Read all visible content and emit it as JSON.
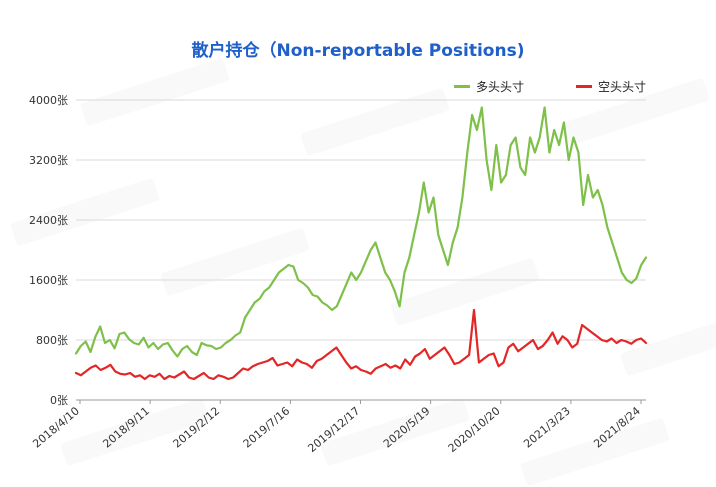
{
  "chart_data": {
    "type": "line",
    "title": "散户持仓（Non-reportable Positions)",
    "xlabel": "",
    "ylabel": "",
    "ylim": [
      0,
      4000
    ],
    "yticks": [
      "0张",
      "800张",
      "1600张",
      "2400张",
      "3200张",
      "4000张"
    ],
    "x_ticks": [
      "2018/4/10",
      "2018/9/11",
      "2019/2/12",
      "2019/7/16",
      "2019/12/17",
      "2020/5/19",
      "2020/10/20",
      "2021/3/23",
      "2021/8/24"
    ],
    "grid": true,
    "legend_position": "top-right",
    "series": [
      {
        "name": "多头头寸",
        "color": "#7ec04a",
        "values": [
          620,
          720,
          780,
          640,
          840,
          980,
          760,
          800,
          690,
          880,
          900,
          810,
          760,
          740,
          830,
          700,
          760,
          680,
          740,
          760,
          660,
          580,
          680,
          720,
          640,
          600,
          760,
          730,
          720,
          680,
          700,
          760,
          800,
          860,
          900,
          1100,
          1200,
          1300,
          1350,
          1450,
          1500,
          1600,
          1700,
          1750,
          1800,
          1780,
          1600,
          1560,
          1500,
          1400,
          1380,
          1300,
          1260,
          1200,
          1250,
          1400,
          1550,
          1700,
          1600,
          1700,
          1850,
          2000,
          2100,
          1900,
          1700,
          1600,
          1450,
          1250,
          1700,
          1900,
          2200,
          2500,
          2900,
          2500,
          2700,
          2200,
          2000,
          1800,
          2100,
          2300,
          2700,
          3300,
          3800,
          3600,
          3900,
          3200,
          2800,
          3400,
          2900,
          3000,
          3400,
          3500,
          3100,
          3000,
          3500,
          3300,
          3500,
          3900,
          3300,
          3600,
          3400,
          3700,
          3200,
          3500,
          3300,
          2600,
          3000,
          2700,
          2800,
          2600,
          2300,
          2100,
          1900,
          1700,
          1600,
          1560,
          1620,
          1800,
          1900
        ],
        "marker": "none"
      },
      {
        "name": "空头头寸",
        "color": "#e32626",
        "values": [
          360,
          330,
          380,
          430,
          460,
          400,
          430,
          470,
          380,
          350,
          340,
          360,
          310,
          330,
          280,
          330,
          310,
          350,
          280,
          320,
          300,
          340,
          380,
          300,
          280,
          320,
          360,
          300,
          280,
          330,
          310,
          280,
          300,
          360,
          420,
          400,
          450,
          480,
          500,
          520,
          560,
          460,
          480,
          500,
          450,
          540,
          500,
          480,
          430,
          520,
          550,
          600,
          650,
          700,
          600,
          500,
          420,
          450,
          400,
          380,
          350,
          420,
          450,
          480,
          430,
          460,
          420,
          540,
          470,
          580,
          620,
          680,
          550,
          600,
          650,
          700,
          600,
          480,
          500,
          550,
          600,
          1200,
          500,
          550,
          600,
          620,
          450,
          500,
          700,
          750,
          650,
          700,
          750,
          800,
          680,
          720,
          800,
          900,
          750,
          850,
          800,
          700,
          750,
          1000,
          950,
          900,
          850,
          800,
          780,
          820,
          760,
          800,
          780,
          750,
          800,
          820,
          760
        ]
      }
    ]
  }
}
